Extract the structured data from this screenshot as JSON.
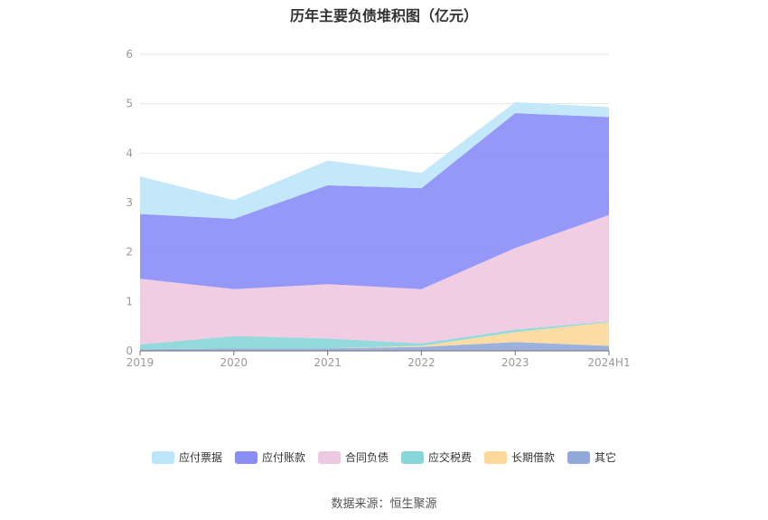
{
  "chart_data": {
    "type": "area",
    "stacked": true,
    "title": "历年主要负债堆积图（亿元）",
    "categories": [
      "2019",
      "2020",
      "2021",
      "2022",
      "2023",
      "2024H1"
    ],
    "ylim": [
      0,
      6
    ],
    "yticks": [
      "0",
      "1",
      "2",
      "3",
      "4",
      "5",
      "6"
    ],
    "grid": true,
    "legend_position": "bottom",
    "series": [
      {
        "name": "其它",
        "color": "#91a8d8",
        "values": [
          0.03,
          0.05,
          0.05,
          0.08,
          0.18,
          0.1
        ]
      },
      {
        "name": "长期借款",
        "color": "#fdd89a",
        "values": [
          0.0,
          0.0,
          0.0,
          0.02,
          0.2,
          0.48
        ]
      },
      {
        "name": "应交税费",
        "color": "#88d6d9",
        "values": [
          0.1,
          0.25,
          0.2,
          0.05,
          0.05,
          0.02
        ]
      },
      {
        "name": "合同负债",
        "color": "#eec8e0",
        "values": [
          1.33,
          0.95,
          1.1,
          1.1,
          1.65,
          2.15
        ]
      },
      {
        "name": "应付账款",
        "color": "#8b8df7",
        "values": [
          1.31,
          1.42,
          2.0,
          2.04,
          2.73,
          1.98
        ]
      },
      {
        "name": "应付票据",
        "color": "#bde5f9",
        "values": [
          0.76,
          0.38,
          0.5,
          0.31,
          0.22,
          0.2
        ]
      }
    ],
    "legend_order": [
      "应付票据",
      "应付账款",
      "合同负债",
      "应交税费",
      "长期借款",
      "其它"
    ]
  },
  "source": "数据来源：恒生聚源"
}
